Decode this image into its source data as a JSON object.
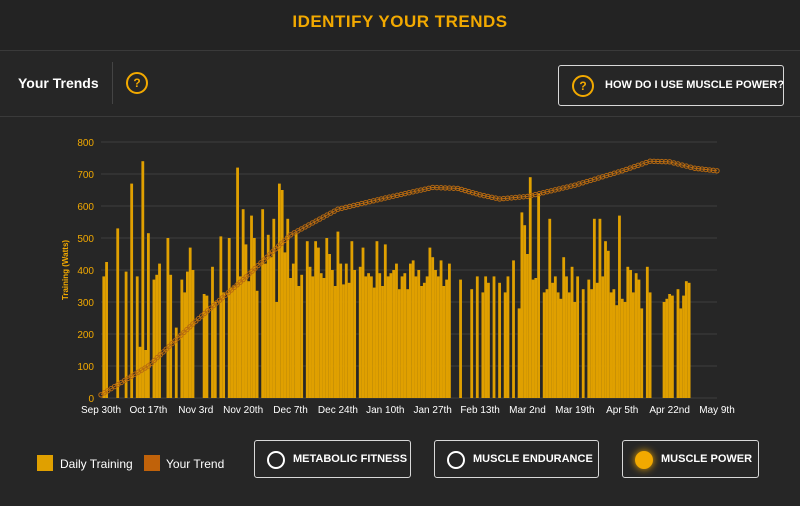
{
  "page_title": "IDENTIFY YOUR TRENDS",
  "header": {
    "title": "Your Trends",
    "help_icon": "?",
    "how_button_label": "HOW DO I USE MUSCLE POWER?"
  },
  "legend": [
    {
      "label": "Daily Training",
      "color": "#e0a000"
    },
    {
      "label": "Your Trend",
      "color": "#c0620a"
    }
  ],
  "modes": [
    {
      "label": "METABOLIC FITNESS",
      "selected": false
    },
    {
      "label": "MUSCLE ENDURANCE",
      "selected": false
    },
    {
      "label": "MUSCLE POWER",
      "selected": true
    }
  ],
  "colors": {
    "accent": "#f2a900",
    "bar": "#e0a000",
    "trend": "#b86a10",
    "background": "#232323"
  },
  "chart_data": {
    "type": "bar",
    "ylabel": "Training (Watts)",
    "ylim": [
      0,
      800
    ],
    "yticks": [
      0,
      100,
      200,
      300,
      400,
      500,
      600,
      700,
      800
    ],
    "xtick_labels": [
      "Sep 30th",
      "Oct 17th",
      "Nov 3rd",
      "Nov 20th",
      "Dec 7th",
      "Dec 24th",
      "Jan 10th",
      "Jan 27th",
      "Feb 13th",
      "Mar 2nd",
      "Mar 19th",
      "Apr 5th",
      "Apr 22nd",
      "May 9th"
    ],
    "grid": true,
    "bars": [
      {
        "date": "Oct 1",
        "value": 380
      },
      {
        "date": "Oct 2",
        "value": 425
      },
      {
        "date": "Oct 6",
        "value": 530
      },
      {
        "date": "Oct 9",
        "value": 395
      },
      {
        "date": "Oct 11",
        "value": 670
      },
      {
        "date": "Oct 13",
        "value": 380
      },
      {
        "date": "Oct 14",
        "value": 160
      },
      {
        "date": "Oct 15",
        "value": 740
      },
      {
        "date": "Oct 16",
        "value": 150
      },
      {
        "date": "Oct 17",
        "value": 515
      },
      {
        "date": "Oct 19",
        "value": 370
      },
      {
        "date": "Oct 20",
        "value": 385
      },
      {
        "date": "Oct 21",
        "value": 420
      },
      {
        "date": "Oct 24",
        "value": 500
      },
      {
        "date": "Oct 25",
        "value": 385
      },
      {
        "date": "Oct 27",
        "value": 220
      },
      {
        "date": "Oct 29",
        "value": 370
      },
      {
        "date": "Oct 30",
        "value": 330
      },
      {
        "date": "Oct 31",
        "value": 395
      },
      {
        "date": "Nov 1",
        "value": 470
      },
      {
        "date": "Nov 2",
        "value": 400
      },
      {
        "date": "Nov 6",
        "value": 325
      },
      {
        "date": "Nov 7",
        "value": 320
      },
      {
        "date": "Nov 9",
        "value": 410
      },
      {
        "date": "Nov 10",
        "value": 300
      },
      {
        "date": "Nov 12",
        "value": 505
      },
      {
        "date": "Nov 13",
        "value": 330
      },
      {
        "date": "Nov 15",
        "value": 500
      },
      {
        "date": "Nov 16",
        "value": 345
      },
      {
        "date": "Nov 17",
        "value": 350
      },
      {
        "date": "Nov 18",
        "value": 720
      },
      {
        "date": "Nov 19",
        "value": 380
      },
      {
        "date": "Nov 20",
        "value": 590
      },
      {
        "date": "Nov 21",
        "value": 480
      },
      {
        "date": "Nov 22",
        "value": 365
      },
      {
        "date": "Nov 23",
        "value": 570
      },
      {
        "date": "Nov 24",
        "value": 500
      },
      {
        "date": "Nov 25",
        "value": 335
      },
      {
        "date": "Nov 27",
        "value": 590
      },
      {
        "date": "Nov 28",
        "value": 420
      },
      {
        "date": "Nov 29",
        "value": 510
      },
      {
        "date": "Nov 30",
        "value": 440
      },
      {
        "date": "Dec 1",
        "value": 560
      },
      {
        "date": "Dec 2",
        "value": 300
      },
      {
        "date": "Dec 3",
        "value": 670
      },
      {
        "date": "Dec 4",
        "value": 650
      },
      {
        "date": "Dec 5",
        "value": 455
      },
      {
        "date": "Dec 6",
        "value": 560
      },
      {
        "date": "Dec 7",
        "value": 375
      },
      {
        "date": "Dec 8",
        "value": 420
      },
      {
        "date": "Dec 9",
        "value": 515
      },
      {
        "date": "Dec 10",
        "value": 350
      },
      {
        "date": "Dec 11",
        "value": 385
      },
      {
        "date": "Dec 13",
        "value": 490
      },
      {
        "date": "Dec 14",
        "value": 410
      },
      {
        "date": "Dec 15",
        "value": 380
      },
      {
        "date": "Dec 16",
        "value": 490
      },
      {
        "date": "Dec 17",
        "value": 470
      },
      {
        "date": "Dec 18",
        "value": 390
      },
      {
        "date": "Dec 19",
        "value": 375
      },
      {
        "date": "Dec 20",
        "value": 500
      },
      {
        "date": "Dec 21",
        "value": 450
      },
      {
        "date": "Dec 22",
        "value": 400
      },
      {
        "date": "Dec 23",
        "value": 350
      },
      {
        "date": "Dec 24",
        "value": 520
      },
      {
        "date": "Dec 25",
        "value": 420
      },
      {
        "date": "Dec 26",
        "value": 355
      },
      {
        "date": "Dec 27",
        "value": 420
      },
      {
        "date": "Dec 28",
        "value": 360
      },
      {
        "date": "Dec 29",
        "value": 490
      },
      {
        "date": "Dec 30",
        "value": 400
      },
      {
        "date": "Jan 1",
        "value": 410
      },
      {
        "date": "Jan 2",
        "value": 470
      },
      {
        "date": "Jan 3",
        "value": 380
      },
      {
        "date": "Jan 4",
        "value": 390
      },
      {
        "date": "Jan 5",
        "value": 380
      },
      {
        "date": "Jan 6",
        "value": 345
      },
      {
        "date": "Jan 7",
        "value": 490
      },
      {
        "date": "Jan 8",
        "value": 390
      },
      {
        "date": "Jan 9",
        "value": 350
      },
      {
        "date": "Jan 10",
        "value": 480
      },
      {
        "date": "Jan 11",
        "value": 380
      },
      {
        "date": "Jan 12",
        "value": 390
      },
      {
        "date": "Jan 13",
        "value": 400
      },
      {
        "date": "Jan 14",
        "value": 420
      },
      {
        "date": "Jan 15",
        "value": 340
      },
      {
        "date": "Jan 16",
        "value": 380
      },
      {
        "date": "Jan 17",
        "value": 390
      },
      {
        "date": "Jan 18",
        "value": 340
      },
      {
        "date": "Jan 19",
        "value": 420
      },
      {
        "date": "Jan 20",
        "value": 430
      },
      {
        "date": "Jan 21",
        "value": 380
      },
      {
        "date": "Jan 22",
        "value": 400
      },
      {
        "date": "Jan 23",
        "value": 350
      },
      {
        "date": "Jan 24",
        "value": 360
      },
      {
        "date": "Jan 25",
        "value": 380
      },
      {
        "date": "Jan 26",
        "value": 470
      },
      {
        "date": "Jan 27",
        "value": 440
      },
      {
        "date": "Jan 28",
        "value": 400
      },
      {
        "date": "Jan 29",
        "value": 380
      },
      {
        "date": "Jan 30",
        "value": 430
      },
      {
        "date": "Jan 31",
        "value": 350
      },
      {
        "date": "Feb 1",
        "value": 370
      },
      {
        "date": "Feb 2",
        "value": 420
      },
      {
        "date": "Feb 6",
        "value": 370
      },
      {
        "date": "Feb 10",
        "value": 340
      },
      {
        "date": "Feb 12",
        "value": 380
      },
      {
        "date": "Feb 14",
        "value": 330
      },
      {
        "date": "Feb 15",
        "value": 380
      },
      {
        "date": "Feb 16",
        "value": 360
      },
      {
        "date": "Feb 18",
        "value": 380
      },
      {
        "date": "Feb 20",
        "value": 360
      },
      {
        "date": "Feb 22",
        "value": 330
      },
      {
        "date": "Feb 23",
        "value": 380
      },
      {
        "date": "Feb 25",
        "value": 430
      },
      {
        "date": "Feb 27",
        "value": 280
      },
      {
        "date": "Feb 28",
        "value": 580
      },
      {
        "date": "Mar 1",
        "value": 540
      },
      {
        "date": "Mar 2",
        "value": 450
      },
      {
        "date": "Mar 3",
        "value": 690
      },
      {
        "date": "Mar 4",
        "value": 370
      },
      {
        "date": "Mar 5",
        "value": 375
      },
      {
        "date": "Mar 6",
        "value": 640
      },
      {
        "date": "Mar 8",
        "value": 330
      },
      {
        "date": "Mar 9",
        "value": 340
      },
      {
        "date": "Mar 10",
        "value": 560
      },
      {
        "date": "Mar 11",
        "value": 360
      },
      {
        "date": "Mar 12",
        "value": 380
      },
      {
        "date": "Mar 13",
        "value": 330
      },
      {
        "date": "Mar 14",
        "value": 310
      },
      {
        "date": "Mar 15",
        "value": 440
      },
      {
        "date": "Mar 16",
        "value": 380
      },
      {
        "date": "Mar 17",
        "value": 330
      },
      {
        "date": "Mar 18",
        "value": 410
      },
      {
        "date": "Mar 19",
        "value": 300
      },
      {
        "date": "Mar 20",
        "value": 380
      },
      {
        "date": "Mar 22",
        "value": 340
      },
      {
        "date": "Mar 24",
        "value": 370
      },
      {
        "date": "Mar 25",
        "value": 340
      },
      {
        "date": "Mar 26",
        "value": 560
      },
      {
        "date": "Mar 27",
        "value": 360
      },
      {
        "date": "Mar 28",
        "value": 560
      },
      {
        "date": "Mar 29",
        "value": 380
      },
      {
        "date": "Mar 30",
        "value": 490
      },
      {
        "date": "Mar 31",
        "value": 460
      },
      {
        "date": "Apr 1",
        "value": 330
      },
      {
        "date": "Apr 2",
        "value": 340
      },
      {
        "date": "Apr 3",
        "value": 290
      },
      {
        "date": "Apr 4",
        "value": 570
      },
      {
        "date": "Apr 5",
        "value": 310
      },
      {
        "date": "Apr 6",
        "value": 300
      },
      {
        "date": "Apr 7",
        "value": 410
      },
      {
        "date": "Apr 8",
        "value": 400
      },
      {
        "date": "Apr 9",
        "value": 330
      },
      {
        "date": "Apr 10",
        "value": 390
      },
      {
        "date": "Apr 11",
        "value": 370
      },
      {
        "date": "Apr 12",
        "value": 280
      },
      {
        "date": "Apr 14",
        "value": 410
      },
      {
        "date": "Apr 15",
        "value": 330
      },
      {
        "date": "Apr 20",
        "value": 300
      },
      {
        "date": "Apr 21",
        "value": 310
      },
      {
        "date": "Apr 22",
        "value": 325
      },
      {
        "date": "Apr 23",
        "value": 320
      },
      {
        "date": "Apr 25",
        "value": 340
      },
      {
        "date": "Apr 26",
        "value": 280
      },
      {
        "date": "Apr 27",
        "value": 320
      },
      {
        "date": "Apr 28",
        "value": 365
      },
      {
        "date": "Apr 29",
        "value": 360
      }
    ],
    "trend_line": [
      {
        "date": "Sep 30",
        "value": 10
      },
      {
        "date": "Oct 17",
        "value": 100
      },
      {
        "date": "Nov 3",
        "value": 240
      },
      {
        "date": "Nov 20",
        "value": 370
      },
      {
        "date": "Dec 7",
        "value": 510
      },
      {
        "date": "Dec 24",
        "value": 590
      },
      {
        "date": "Jan 10",
        "value": 625
      },
      {
        "date": "Jan 27",
        "value": 658
      },
      {
        "date": "Feb 5",
        "value": 655
      },
      {
        "date": "Feb 13",
        "value": 635
      },
      {
        "date": "Feb 20",
        "value": 622
      },
      {
        "date": "Mar 2",
        "value": 630
      },
      {
        "date": "Mar 19",
        "value": 665
      },
      {
        "date": "Apr 5",
        "value": 710
      },
      {
        "date": "Apr 15",
        "value": 740
      },
      {
        "date": "Apr 22",
        "value": 738
      },
      {
        "date": "May 1",
        "value": 718
      },
      {
        "date": "May 9",
        "value": 710
      }
    ]
  }
}
